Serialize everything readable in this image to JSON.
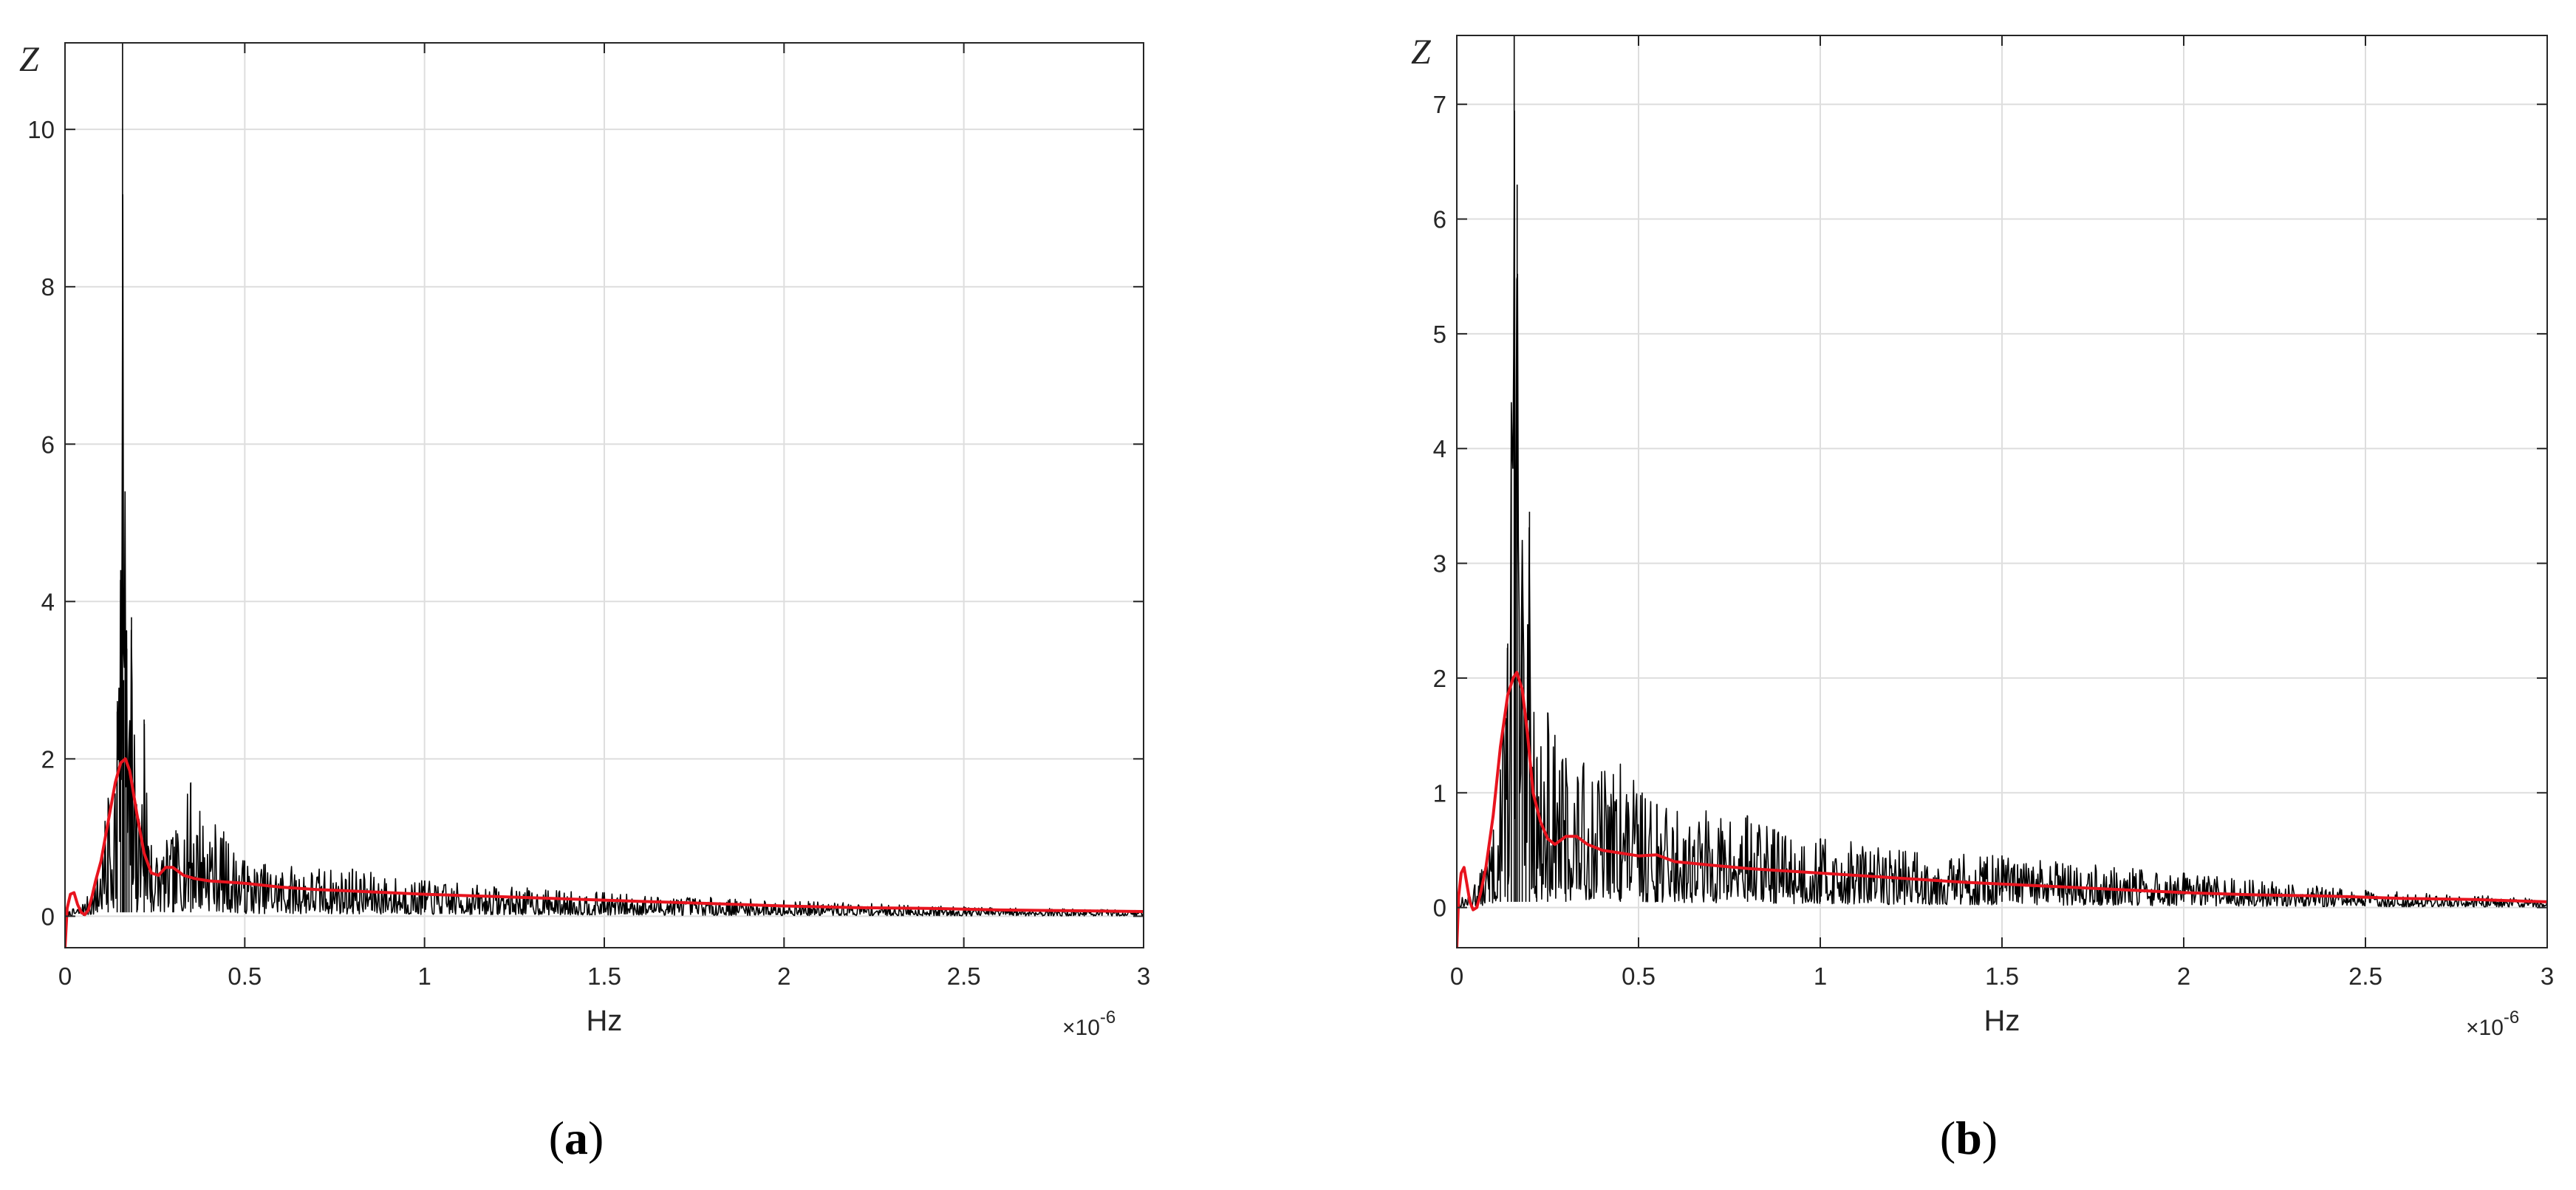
{
  "chart_data": [
    {
      "panel_label": "(a)",
      "panel_letter": "a",
      "type": "line",
      "xlabel": "Hz",
      "ylabel": "Z",
      "x_exponent": "-6",
      "x_scale_prefix": "×10",
      "xlim": [
        0,
        3
      ],
      "ylim": [
        -0.4,
        11.1
      ],
      "xticks": [
        0,
        0.5,
        1,
        1.5,
        2,
        2.5,
        3
      ],
      "xtick_labels": [
        "0",
        "0.5",
        "1",
        "1.5",
        "2",
        "2.5",
        "3"
      ],
      "yticks": [
        0,
        2,
        4,
        6,
        8,
        10
      ],
      "ytick_labels": [
        "0",
        "2",
        "4",
        "6",
        "8",
        "10"
      ],
      "grid": true,
      "colors": {
        "raw_spectrum": "#000000",
        "smoothed": "#e8141e"
      },
      "series": [
        {
          "style": "noisy",
          "color": "#000000",
          "points": [
            [
              0,
              0.05
            ],
            [
              0.05,
              0.15
            ],
            [
              0.09,
              0.5
            ],
            [
              0.12,
              1.5
            ],
            [
              0.145,
              2.6
            ],
            [
              0.155,
              4.4
            ],
            [
              0.16,
              11.1
            ],
            [
              0.163,
              3.0
            ],
            [
              0.167,
              5.4
            ],
            [
              0.172,
              3.4
            ],
            [
              0.178,
              2.2
            ],
            [
              0.185,
              3.8
            ],
            [
              0.2,
              1.3
            ],
            [
              0.22,
              2.5
            ],
            [
              0.24,
              0.9
            ],
            [
              0.3,
              1.0
            ],
            [
              0.35,
              1.7
            ],
            [
              0.5,
              0.7
            ],
            [
              0.8,
              0.6
            ],
            [
              1.0,
              0.45
            ],
            [
              1.5,
              0.3
            ],
            [
              2.0,
              0.2
            ],
            [
              2.5,
              0.12
            ],
            [
              3.0,
              0.08
            ]
          ],
          "noise_seed": 7
        },
        {
          "style": "smooth",
          "color": "#e8141e",
          "points": [
            [
              0.0,
              -0.4
            ],
            [
              0.006,
              0.1
            ],
            [
              0.015,
              0.28
            ],
            [
              0.025,
              0.3
            ],
            [
              0.035,
              0.15
            ],
            [
              0.045,
              0.05
            ],
            [
              0.055,
              0.02
            ],
            [
              0.065,
              0.08
            ],
            [
              0.075,
              0.25
            ],
            [
              0.085,
              0.45
            ],
            [
              0.1,
              0.7
            ],
            [
              0.12,
              1.2
            ],
            [
              0.14,
              1.7
            ],
            [
              0.155,
              1.95
            ],
            [
              0.168,
              2.0
            ],
            [
              0.18,
              1.85
            ],
            [
              0.2,
              1.3
            ],
            [
              0.22,
              0.8
            ],
            [
              0.24,
              0.55
            ],
            [
              0.26,
              0.52
            ],
            [
              0.28,
              0.62
            ],
            [
              0.3,
              0.62
            ],
            [
              0.33,
              0.52
            ],
            [
              0.36,
              0.48
            ],
            [
              0.4,
              0.45
            ],
            [
              0.5,
              0.42
            ],
            [
              0.6,
              0.37
            ],
            [
              0.7,
              0.34
            ],
            [
              0.8,
              0.32
            ],
            [
              1.0,
              0.28
            ],
            [
              1.2,
              0.25
            ],
            [
              1.4,
              0.22
            ],
            [
              1.6,
              0.19
            ],
            [
              1.8,
              0.16
            ],
            [
              2.0,
              0.13
            ],
            [
              2.2,
              0.11
            ],
            [
              2.4,
              0.1
            ],
            [
              2.6,
              0.08
            ],
            [
              2.8,
              0.07
            ],
            [
              3.0,
              0.06
            ]
          ]
        }
      ]
    },
    {
      "panel_label": "(b)",
      "panel_letter": "b",
      "type": "line",
      "xlabel": "Hz",
      "ylabel": "Z",
      "x_exponent": "-6",
      "x_scale_prefix": "×10",
      "xlim": [
        0,
        3
      ],
      "ylim": [
        -0.35,
        7.6
      ],
      "xticks": [
        0,
        0.5,
        1,
        1.5,
        2,
        2.5,
        3
      ],
      "xtick_labels": [
        "0",
        "0.5",
        "1",
        "1.5",
        "2",
        "2.5",
        "3"
      ],
      "yticks": [
        0,
        1,
        2,
        3,
        4,
        5,
        6,
        7
      ],
      "ytick_labels": [
        "0",
        "1",
        "2",
        "3",
        "4",
        "5",
        "6",
        "7"
      ],
      "grid": true,
      "colors": {
        "raw_spectrum": "#000000",
        "smoothed": "#e8141e"
      },
      "series": [
        {
          "style": "noisy",
          "color": "#000000",
          "points": [
            [
              0,
              0.05
            ],
            [
              0.05,
              0.2
            ],
            [
              0.09,
              0.5
            ],
            [
              0.12,
              1.2
            ],
            [
              0.14,
              2.3
            ],
            [
              0.15,
              4.4
            ],
            [
              0.158,
              7.6
            ],
            [
              0.162,
              3.0
            ],
            [
              0.166,
              6.3
            ],
            [
              0.172,
              2.2
            ],
            [
              0.18,
              3.2
            ],
            [
              0.19,
              1.5
            ],
            [
              0.2,
              3.45
            ],
            [
              0.22,
              1.3
            ],
            [
              0.25,
              1.7
            ],
            [
              0.3,
              1.3
            ],
            [
              0.45,
              1.25
            ],
            [
              0.55,
              0.9
            ],
            [
              0.8,
              0.8
            ],
            [
              1.0,
              0.6
            ],
            [
              1.5,
              0.45
            ],
            [
              2.0,
              0.3
            ],
            [
              2.5,
              0.15
            ],
            [
              3.0,
              0.08
            ]
          ],
          "noise_seed": 13
        },
        {
          "style": "smooth",
          "color": "#e8141e",
          "points": [
            [
              0.0,
              -0.35
            ],
            [
              0.005,
              0.1
            ],
            [
              0.012,
              0.3
            ],
            [
              0.02,
              0.35
            ],
            [
              0.028,
              0.2
            ],
            [
              0.036,
              0.05
            ],
            [
              0.045,
              -0.02
            ],
            [
              0.055,
              0.0
            ],
            [
              0.065,
              0.12
            ],
            [
              0.08,
              0.35
            ],
            [
              0.1,
              0.8
            ],
            [
              0.12,
              1.4
            ],
            [
              0.14,
              1.85
            ],
            [
              0.155,
              2.0
            ],
            [
              0.165,
              2.05
            ],
            [
              0.18,
              1.9
            ],
            [
              0.195,
              1.5
            ],
            [
              0.21,
              1.0
            ],
            [
              0.23,
              0.75
            ],
            [
              0.25,
              0.6
            ],
            [
              0.27,
              0.55
            ],
            [
              0.3,
              0.62
            ],
            [
              0.33,
              0.62
            ],
            [
              0.36,
              0.55
            ],
            [
              0.4,
              0.5
            ],
            [
              0.5,
              0.45
            ],
            [
              0.55,
              0.46
            ],
            [
              0.6,
              0.4
            ],
            [
              0.7,
              0.37
            ],
            [
              0.8,
              0.34
            ],
            [
              1.0,
              0.3
            ],
            [
              1.2,
              0.26
            ],
            [
              1.4,
              0.22
            ],
            [
              1.6,
              0.19
            ],
            [
              1.8,
              0.16
            ],
            [
              2.0,
              0.13
            ],
            [
              2.2,
              0.11
            ],
            [
              2.4,
              0.1
            ],
            [
              2.6,
              0.08
            ],
            [
              2.8,
              0.07
            ],
            [
              3.0,
              0.05
            ]
          ]
        }
      ]
    }
  ]
}
